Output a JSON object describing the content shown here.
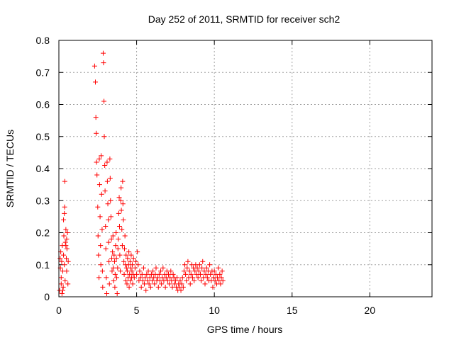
{
  "chart_data": {
    "type": "scatter",
    "title": "Day 252 of 2011, SRMTID for receiver sch2",
    "xlabel": "GPS time / hours",
    "ylabel": "SRMTID / TECUs",
    "xlim": [
      0,
      24
    ],
    "ylim": [
      0,
      0.8
    ],
    "x_ticks": [
      "0",
      "5",
      "10",
      "15",
      "20"
    ],
    "y_ticks": [
      "0",
      "0.1",
      "0.2",
      "0.3",
      "0.4",
      "0.5",
      "0.6",
      "0.7",
      "0.8"
    ],
    "grid": true,
    "marker": "+",
    "marker_color": "#ff0000",
    "series": [
      {
        "name": "sch2",
        "points": [
          [
            0.05,
            0.02
          ],
          [
            0.1,
            0.09
          ],
          [
            0.12,
            0.14
          ],
          [
            0.15,
            0.06
          ],
          [
            0.18,
            0.11
          ],
          [
            0.2,
            0.01
          ],
          [
            0.22,
            0.16
          ],
          [
            0.25,
            0.08
          ],
          [
            0.28,
            0.03
          ],
          [
            0.3,
            0.13
          ],
          [
            0.32,
            0.19
          ],
          [
            0.35,
            0.1
          ],
          [
            0.37,
            0.28
          ],
          [
            0.38,
            0.36
          ],
          [
            0.4,
            0.05
          ],
          [
            0.42,
            0.17
          ],
          [
            0.45,
            0.21
          ],
          [
            0.48,
            0.12
          ],
          [
            0.5,
            0.08
          ],
          [
            0.52,
            0.15
          ],
          [
            0.55,
            0.2
          ],
          [
            0.58,
            0.04
          ],
          [
            0.6,
            0.11
          ],
          [
            0.3,
            0.24
          ],
          [
            0.35,
            0.26
          ],
          [
            0.15,
            0.04
          ],
          [
            0.08,
            0.12
          ],
          [
            0.45,
            0.16
          ],
          [
            0.5,
            0.18
          ],
          [
            0.25,
            0.02
          ],
          [
            2.3,
            0.72
          ],
          [
            2.35,
            0.67
          ],
          [
            2.38,
            0.56
          ],
          [
            2.4,
            0.51
          ],
          [
            2.42,
            0.42
          ],
          [
            2.45,
            0.38
          ],
          [
            2.5,
            0.28
          ],
          [
            2.52,
            0.19
          ],
          [
            2.55,
            0.13
          ],
          [
            2.58,
            0.06
          ],
          [
            2.6,
            0.43
          ],
          [
            2.62,
            0.35
          ],
          [
            2.65,
            0.25
          ],
          [
            2.68,
            0.16
          ],
          [
            2.7,
            0.1
          ],
          [
            2.72,
            0.44
          ],
          [
            2.75,
            0.32
          ],
          [
            2.78,
            0.21
          ],
          [
            2.8,
            0.08
          ],
          [
            2.82,
            0.03
          ],
          [
            2.85,
            0.76
          ],
          [
            2.87,
            0.73
          ],
          [
            2.9,
            0.61
          ],
          [
            2.92,
            0.5
          ],
          [
            2.95,
            0.41
          ],
          [
            2.97,
            0.33
          ],
          [
            3.0,
            0.22
          ],
          [
            3.02,
            0.15
          ],
          [
            3.05,
            0.06
          ],
          [
            3.08,
            0.01
          ],
          [
            3.1,
            0.42
          ],
          [
            3.12,
            0.36
          ],
          [
            3.15,
            0.29
          ],
          [
            3.18,
            0.24
          ],
          [
            3.2,
            0.17
          ],
          [
            3.22,
            0.11
          ],
          [
            3.25,
            0.04
          ],
          [
            3.28,
            0.43
          ],
          [
            3.3,
            0.37
          ],
          [
            3.32,
            0.3
          ],
          [
            3.35,
            0.25
          ],
          [
            3.38,
            0.18
          ],
          [
            3.4,
            0.12
          ],
          [
            3.42,
            0.08
          ],
          [
            3.45,
            0.14
          ],
          [
            3.48,
            0.19
          ],
          [
            3.5,
            0.09
          ],
          [
            3.52,
            0.05
          ],
          [
            3.55,
            0.13
          ],
          [
            3.58,
            0.11
          ],
          [
            3.6,
            0.03
          ],
          [
            3.62,
            0.07
          ],
          [
            3.65,
            0.16
          ],
          [
            3.68,
            0.2
          ],
          [
            3.7,
            0.12
          ],
          [
            3.72,
            0.06
          ],
          [
            3.75,
            0.01
          ],
          [
            3.78,
            0.09
          ],
          [
            3.8,
            0.15
          ],
          [
            3.82,
            0.18
          ],
          [
            3.85,
            0.26
          ],
          [
            3.88,
            0.31
          ],
          [
            3.9,
            0.22
          ],
          [
            3.92,
            0.13
          ],
          [
            3.95,
            0.08
          ],
          [
            3.98,
            0.3
          ],
          [
            4.0,
            0.34
          ],
          [
            4.02,
            0.27
          ],
          [
            4.05,
            0.21
          ],
          [
            4.08,
            0.16
          ],
          [
            4.1,
            0.36
          ],
          [
            4.12,
            0.29
          ],
          [
            4.15,
            0.24
          ],
          [
            4.18,
            0.11
          ],
          [
            4.2,
            0.07
          ],
          [
            4.22,
            0.15
          ],
          [
            4.25,
            0.19
          ],
          [
            4.28,
            0.1
          ],
          [
            4.3,
            0.05
          ],
          [
            4.32,
            0.13
          ],
          [
            4.35,
            0.09
          ],
          [
            4.38,
            0.04
          ],
          [
            4.4,
            0.08
          ],
          [
            4.42,
            0.12
          ],
          [
            4.45,
            0.06
          ],
          [
            4.48,
            0.1
          ],
          [
            4.5,
            0.14
          ],
          [
            4.52,
            0.03
          ],
          [
            4.55,
            0.07
          ],
          [
            4.58,
            0.11
          ],
          [
            4.6,
            0.05
          ],
          [
            4.62,
            0.09
          ],
          [
            4.65,
            0.13
          ],
          [
            4.68,
            0.06
          ],
          [
            4.7,
            0.08
          ],
          [
            4.72,
            0.1
          ],
          [
            4.75,
            0.04
          ],
          [
            4.78,
            0.07
          ],
          [
            4.8,
            0.12
          ],
          [
            4.85,
            0.06
          ],
          [
            4.9,
            0.09
          ],
          [
            4.95,
            0.11
          ],
          [
            5.0,
            0.07
          ],
          [
            5.05,
            0.14
          ],
          [
            5.1,
            0.1
          ],
          [
            5.15,
            0.05
          ],
          [
            5.2,
            0.08
          ],
          [
            5.25,
            0.06
          ],
          [
            5.3,
            0.03
          ],
          [
            5.35,
            0.07
          ],
          [
            5.4,
            0.05
          ],
          [
            5.45,
            0.09
          ],
          [
            5.5,
            0.04
          ],
          [
            5.55,
            0.06
          ],
          [
            5.6,
            0.02
          ],
          [
            5.65,
            0.07
          ],
          [
            5.7,
            0.05
          ],
          [
            5.75,
            0.08
          ],
          [
            5.8,
            0.04
          ],
          [
            5.85,
            0.06
          ],
          [
            5.9,
            0.03
          ],
          [
            5.95,
            0.07
          ],
          [
            6.0,
            0.05
          ],
          [
            6.05,
            0.08
          ],
          [
            6.1,
            0.06
          ],
          [
            6.15,
            0.04
          ],
          [
            6.2,
            0.07
          ],
          [
            6.25,
            0.09
          ],
          [
            6.3,
            0.05
          ],
          [
            6.35,
            0.06
          ],
          [
            6.4,
            0.03
          ],
          [
            6.45,
            0.07
          ],
          [
            6.5,
            0.05
          ],
          [
            6.55,
            0.08
          ],
          [
            6.6,
            0.04
          ],
          [
            6.65,
            0.06
          ],
          [
            6.7,
            0.09
          ],
          [
            6.75,
            0.05
          ],
          [
            6.8,
            0.07
          ],
          [
            6.85,
            0.03
          ],
          [
            6.9,
            0.06
          ],
          [
            6.95,
            0.08
          ],
          [
            7.0,
            0.05
          ],
          [
            7.05,
            0.07
          ],
          [
            7.1,
            0.04
          ],
          [
            7.15,
            0.06
          ],
          [
            7.2,
            0.08
          ],
          [
            7.25,
            0.05
          ],
          [
            7.3,
            0.03
          ],
          [
            7.35,
            0.07
          ],
          [
            7.4,
            0.06
          ],
          [
            7.45,
            0.04
          ],
          [
            7.5,
            0.05
          ],
          [
            7.55,
            0.03
          ],
          [
            7.6,
            0.06
          ],
          [
            7.65,
            0.02
          ],
          [
            7.7,
            0.04
          ],
          [
            7.75,
            0.03
          ],
          [
            7.8,
            0.05
          ],
          [
            7.85,
            0.02
          ],
          [
            7.9,
            0.04
          ],
          [
            7.95,
            0.06
          ],
          [
            8.0,
            0.03
          ],
          [
            8.05,
            0.08
          ],
          [
            8.1,
            0.1
          ],
          [
            8.15,
            0.07
          ],
          [
            8.2,
            0.05
          ],
          [
            8.25,
            0.09
          ],
          [
            8.3,
            0.11
          ],
          [
            8.35,
            0.06
          ],
          [
            8.4,
            0.08
          ],
          [
            8.45,
            0.04
          ],
          [
            8.5,
            0.07
          ],
          [
            8.55,
            0.1
          ],
          [
            8.6,
            0.06
          ],
          [
            8.65,
            0.09
          ],
          [
            8.7,
            0.05
          ],
          [
            8.75,
            0.08
          ],
          [
            8.8,
            0.1
          ],
          [
            8.85,
            0.07
          ],
          [
            8.9,
            0.09
          ],
          [
            8.95,
            0.06
          ],
          [
            9.0,
            0.08
          ],
          [
            9.05,
            0.1
          ],
          [
            9.1,
            0.07
          ],
          [
            9.15,
            0.05
          ],
          [
            9.2,
            0.09
          ],
          [
            9.25,
            0.11
          ],
          [
            9.3,
            0.06
          ],
          [
            9.35,
            0.08
          ],
          [
            9.4,
            0.04
          ],
          [
            9.45,
            0.07
          ],
          [
            9.5,
            0.09
          ],
          [
            9.55,
            0.06
          ],
          [
            9.6,
            0.08
          ],
          [
            9.65,
            0.05
          ],
          [
            9.7,
            0.1
          ],
          [
            9.75,
            0.07
          ],
          [
            9.8,
            0.05
          ],
          [
            9.85,
            0.08
          ],
          [
            9.9,
            0.03
          ],
          [
            9.95,
            0.06
          ],
          [
            10.0,
            0.08
          ],
          [
            10.05,
            0.05
          ],
          [
            10.1,
            0.07
          ],
          [
            10.15,
            0.04
          ],
          [
            10.2,
            0.06
          ],
          [
            10.25,
            0.09
          ],
          [
            10.3,
            0.05
          ],
          [
            10.35,
            0.07
          ],
          [
            10.4,
            0.04
          ],
          [
            10.45,
            0.06
          ],
          [
            10.5,
            0.08
          ],
          [
            10.55,
            0.05
          ]
        ]
      }
    ]
  }
}
